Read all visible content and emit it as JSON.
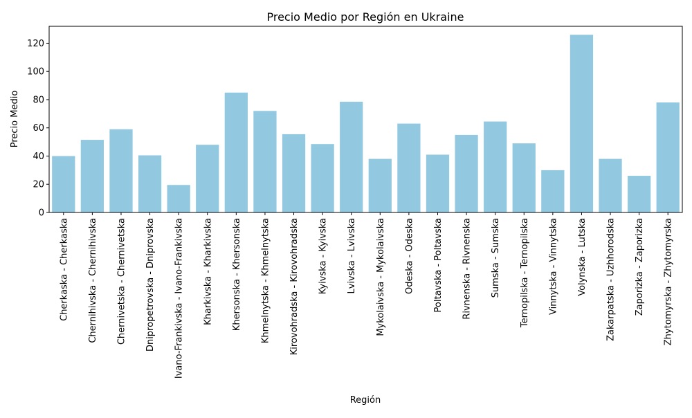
{
  "chart_data": {
    "type": "bar",
    "title": "Precio Medio por Región en Ukraine",
    "xlabel": "Región",
    "ylabel": "Precio Medio",
    "ylim": [
      0,
      132
    ],
    "yticks": [
      0,
      20,
      40,
      60,
      80,
      100,
      120
    ],
    "grid": false,
    "bar_color": "#92c9e0",
    "categories": [
      "Cherkaska - Cherkaska",
      "Chernihivska - Chernihivska",
      "Chernivetska - Chernivetska",
      "Dnipropetrovska - Dniprovska",
      "Ivano-Frankivska - Ivano-Frankivska",
      "Kharkivska - Kharkivska",
      "Khersonska - Khersonska",
      "Khmelnytska - Khmelnytska",
      "Kirovohradska - Kirovohradska",
      "Kyivska - Kyivska",
      "Lvivska - Lvivska",
      "Mykolaivska - Mykolaivska",
      "Odeska - Odeska",
      "Poltavska - Poltavska",
      "Rivnenska - Rivnenska",
      "Sumska - Sumska",
      "Ternopilska - Ternopilska",
      "Vinnytska - Vinnytska",
      "Volynska - Lutska",
      "Zakarpatska - Uzhhorodska",
      "Zaporizka - Zaporizka",
      "Zhytomyrska - Zhytomyrska"
    ],
    "values": [
      40,
      51.5,
      59,
      40.5,
      19.5,
      48,
      85,
      72,
      55.5,
      48.5,
      78.5,
      38,
      63,
      41,
      55,
      64.5,
      49,
      30,
      126,
      38,
      26,
      78
    ]
  }
}
